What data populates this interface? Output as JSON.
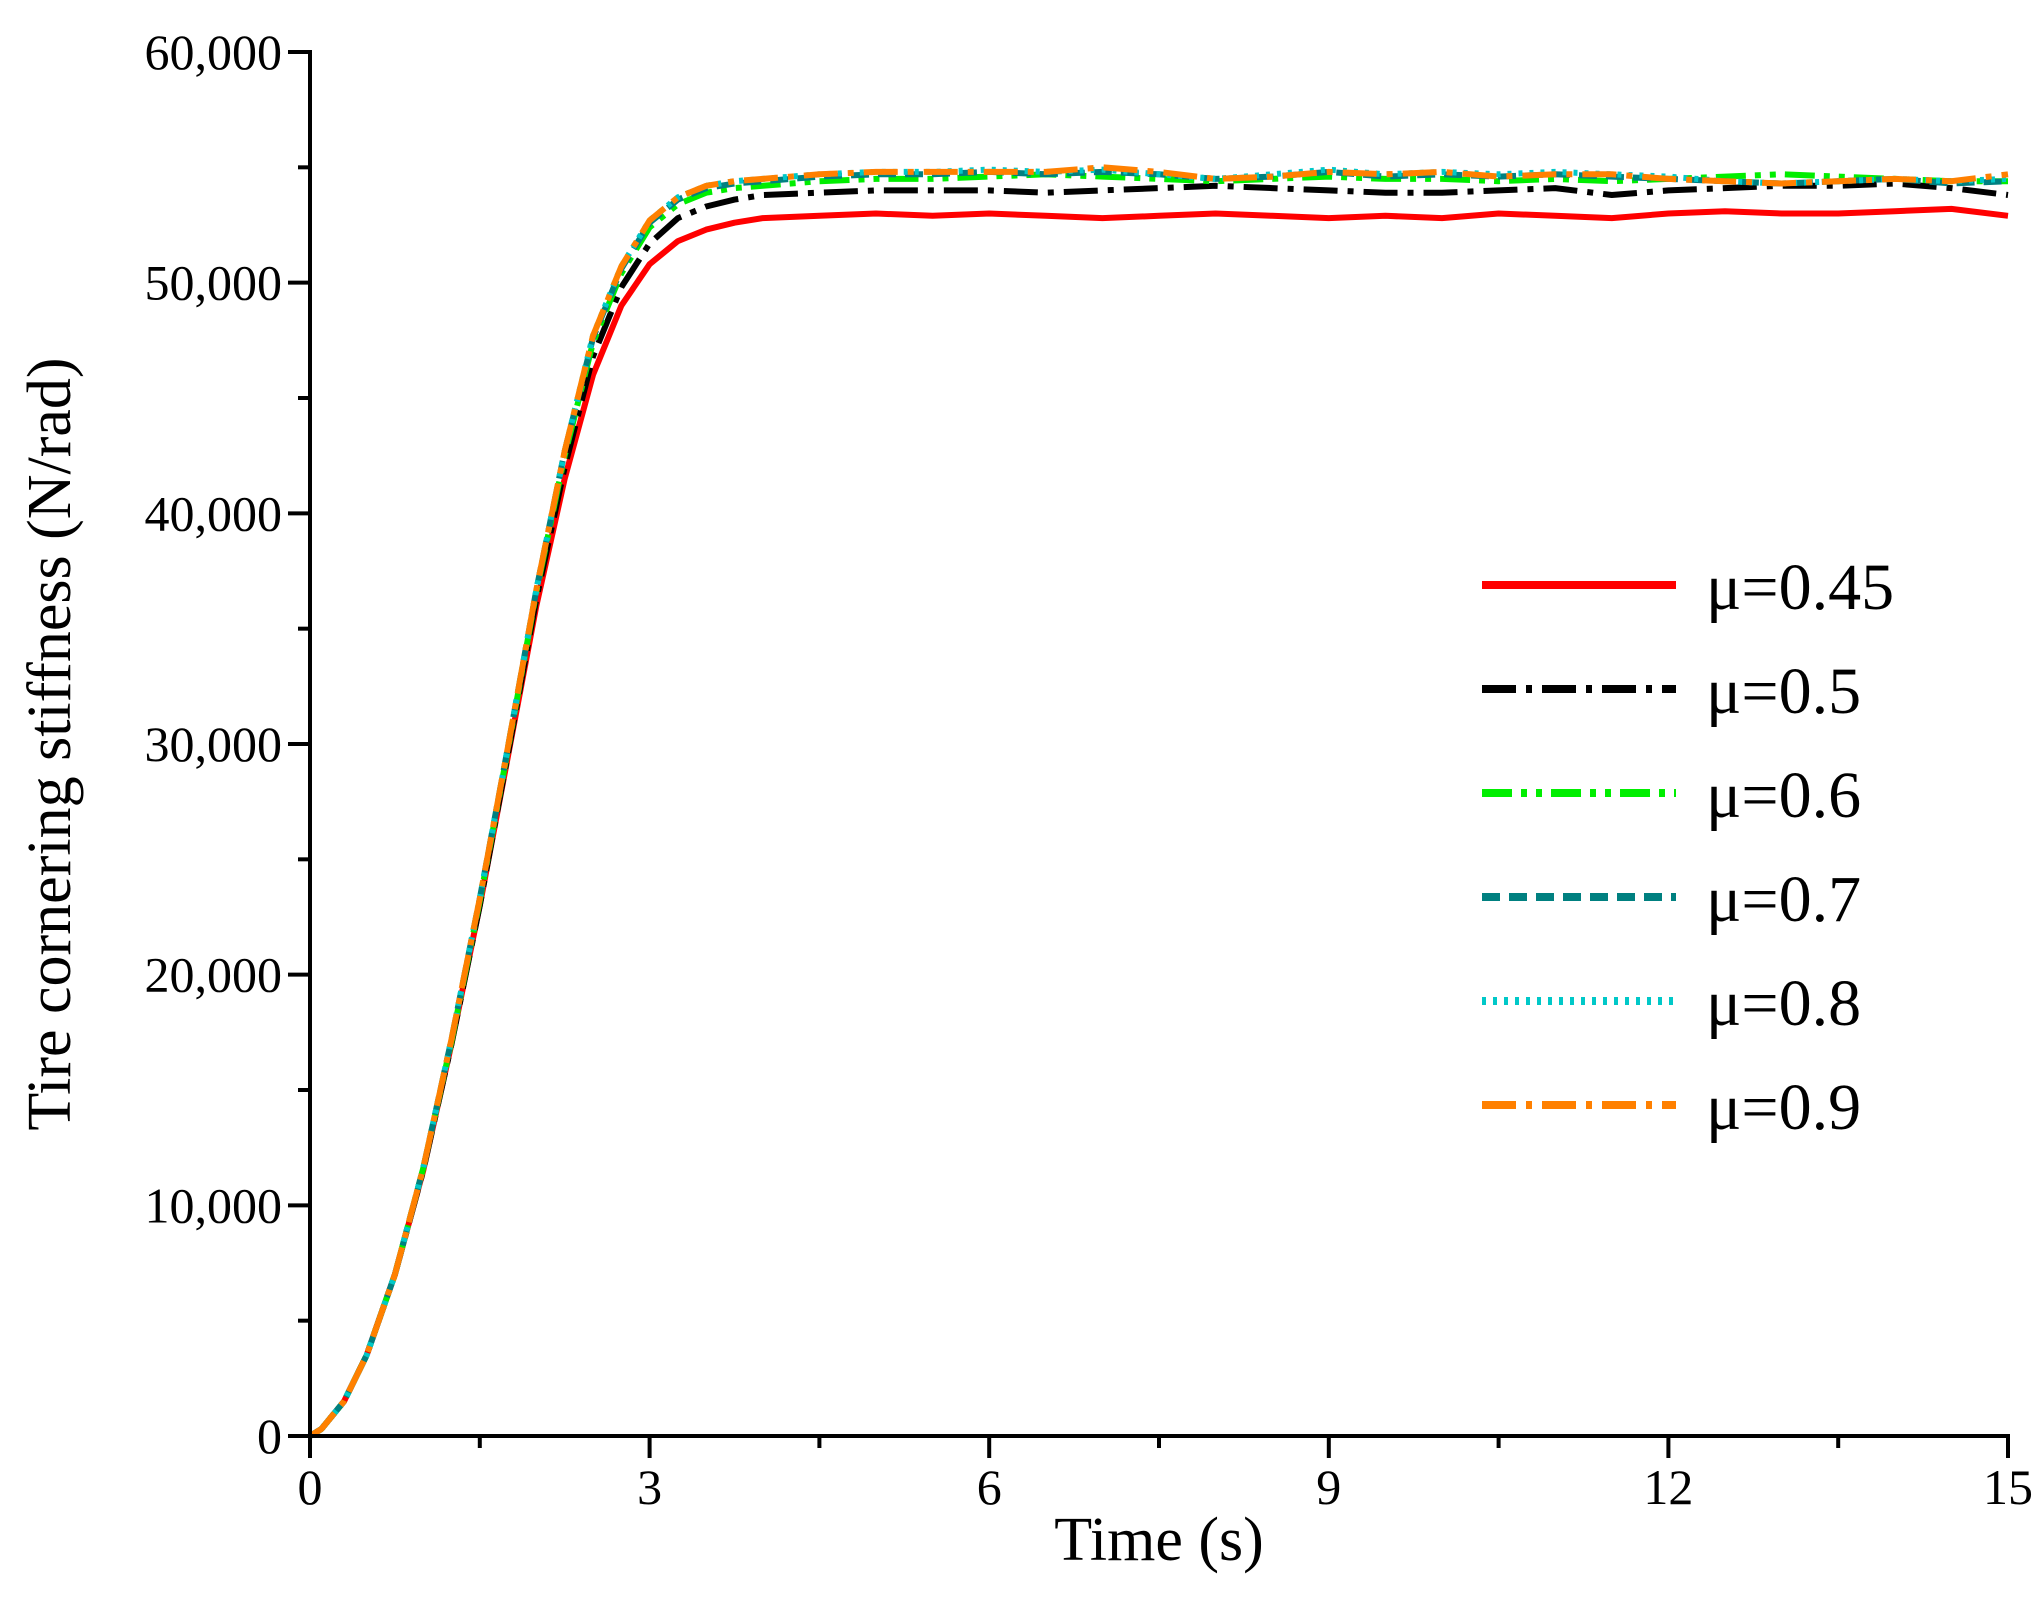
{
  "chart_data": {
    "type": "line",
    "title": "",
    "xlabel": "Time (s)",
    "ylabel": "Tire cornering stiffness (N/rad)",
    "xlim": [
      0,
      15
    ],
    "ylim": [
      0,
      60000
    ],
    "x_ticks": [
      0,
      3,
      6,
      9,
      12,
      15
    ],
    "x_tick_labels": [
      "0",
      "3",
      "6",
      "9",
      "12",
      "15"
    ],
    "y_ticks": [
      0,
      10000,
      20000,
      30000,
      40000,
      50000,
      60000
    ],
    "y_tick_labels": [
      "0",
      "10,000",
      "20,000",
      "30,000",
      "40,000",
      "50,000",
      "60,000"
    ],
    "grid": false,
    "legend_position": "right",
    "x": [
      0,
      0.1,
      0.3,
      0.5,
      0.75,
      1,
      1.25,
      1.5,
      1.75,
      2,
      2.25,
      2.5,
      2.75,
      3,
      3.25,
      3.5,
      3.75,
      4,
      4.5,
      5,
      5.5,
      6,
      6.5,
      7,
      7.5,
      8,
      8.5,
      9,
      9.5,
      10,
      10.5,
      11,
      11.5,
      12,
      12.5,
      13,
      13.5,
      14,
      14.5,
      15
    ],
    "series": [
      {
        "name": "μ=0.45",
        "color": "#ff0000",
        "dash": "solid",
        "values": [
          0,
          300,
          1500,
          3500,
          7000,
          11500,
          17000,
          23000,
          29500,
          36000,
          41500,
          46000,
          49000,
          50800,
          51800,
          52300,
          52600,
          52800,
          52900,
          53000,
          52900,
          53000,
          52900,
          52800,
          52900,
          53000,
          52900,
          52800,
          52900,
          52800,
          53000,
          52900,
          52800,
          53000,
          53100,
          53000,
          53000,
          53100,
          53200,
          52900
        ]
      },
      {
        "name": "μ=0.5",
        "color": "#000000",
        "dash": "dashdot",
        "values": [
          0,
          300,
          1500,
          3500,
          7000,
          11500,
          17000,
          23000,
          29600,
          36300,
          42000,
          46800,
          49800,
          51700,
          52800,
          53300,
          53600,
          53800,
          53900,
          54000,
          54000,
          54000,
          53900,
          54000,
          54100,
          54200,
          54100,
          54000,
          53900,
          53900,
          54000,
          54100,
          53800,
          54000,
          54100,
          54200,
          54200,
          54300,
          54100,
          53800
        ]
      },
      {
        "name": "μ=0.6",
        "color": "#00ee00",
        "dash": "dashdotdot",
        "values": [
          0,
          300,
          1500,
          3500,
          7000,
          11600,
          17100,
          23200,
          29800,
          36600,
          42500,
          47400,
          50400,
          52400,
          53400,
          53900,
          54100,
          54200,
          54400,
          54500,
          54500,
          54600,
          54700,
          54600,
          54500,
          54400,
          54500,
          54600,
          54500,
          54500,
          54400,
          54500,
          54400,
          54500,
          54600,
          54700,
          54600,
          54500,
          54400,
          54400
        ]
      },
      {
        "name": "μ=0.7",
        "color": "#008080",
        "dash": "dash",
        "values": [
          0,
          300,
          1500,
          3500,
          7000,
          11600,
          17200,
          23300,
          29900,
          36700,
          42700,
          47600,
          50600,
          52600,
          53600,
          54100,
          54300,
          54400,
          54600,
          54700,
          54700,
          54800,
          54700,
          54800,
          54700,
          54500,
          54600,
          54800,
          54600,
          54700,
          54600,
          54700,
          54600,
          54500,
          54400,
          54300,
          54400,
          54500,
          54300,
          54400
        ]
      },
      {
        "name": "μ=0.8",
        "color": "#00c8c8",
        "dash": "dot",
        "values": [
          0,
          300,
          1500,
          3500,
          7000,
          11600,
          17200,
          23300,
          29900,
          36700,
          42700,
          47700,
          50700,
          52700,
          53700,
          54200,
          54400,
          54500,
          54700,
          54800,
          54800,
          54900,
          54800,
          54900,
          54700,
          54500,
          54700,
          54900,
          54700,
          54800,
          54700,
          54800,
          54700,
          54600,
          54400,
          54300,
          54400,
          54500,
          54400,
          54500
        ]
      },
      {
        "name": "μ=0.9",
        "color": "#ff8000",
        "dash": "dashdot",
        "values": [
          0,
          300,
          1500,
          3500,
          7000,
          11600,
          17200,
          23300,
          29900,
          36700,
          42700,
          47700,
          50700,
          52700,
          53700,
          54200,
          54400,
          54500,
          54700,
          54800,
          54800,
          54800,
          54800,
          55000,
          54800,
          54500,
          54600,
          54800,
          54700,
          54800,
          54600,
          54700,
          54700,
          54500,
          54400,
          54300,
          54400,
          54500,
          54400,
          54700
        ]
      }
    ]
  }
}
